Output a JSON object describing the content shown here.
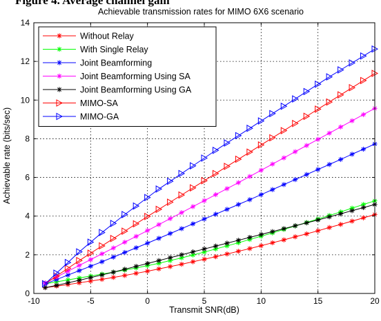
{
  "figure_heading": "Figure 4. Average channel gain",
  "chart_data": {
    "type": "line",
    "title": "Achievable transmission rates for MIMO 6X6 scenario",
    "xlabel": "Transmit SNR(dB)",
    "ylabel": "Achievable rate (bits/sec)",
    "xlim": [
      -10,
      20
    ],
    "ylim": [
      0,
      14
    ],
    "xticks": [
      -10,
      -5,
      0,
      5,
      10,
      15,
      20
    ],
    "yticks": [
      0,
      2,
      4,
      6,
      8,
      10,
      12,
      14
    ],
    "grid": true,
    "legend_position": "top-left",
    "x_start": -9,
    "x_step": 1,
    "series": [
      {
        "name": "Without Relay",
        "color": "#ff0000",
        "marker": "star",
        "values": [
          0.3,
          0.38,
          0.46,
          0.55,
          0.64,
          0.73,
          0.83,
          0.93,
          1.04,
          1.15,
          1.27,
          1.39,
          1.51,
          1.64,
          1.77,
          1.9,
          2.04,
          2.18,
          2.32,
          2.47,
          2.62,
          2.77,
          2.93,
          3.08,
          3.24,
          3.41,
          3.57,
          3.74,
          3.91,
          4.08
        ]
      },
      {
        "name": "With Single Relay",
        "color": "#00ff00",
        "marker": "star",
        "values": [
          0.5,
          0.6,
          0.7,
          0.8,
          0.9,
          1.0,
          1.1,
          1.21,
          1.32,
          1.44,
          1.56,
          1.7,
          1.84,
          1.99,
          2.14,
          2.3,
          2.46,
          2.62,
          2.79,
          2.96,
          3.13,
          3.31,
          3.49,
          3.67,
          3.85,
          4.03,
          4.22,
          4.41,
          4.6,
          4.79
        ]
      },
      {
        "name": "Joint Beamforming",
        "color": "#0000ff",
        "marker": "star",
        "values": [
          0.5,
          0.72,
          0.95,
          1.18,
          1.41,
          1.64,
          1.88,
          2.12,
          2.36,
          2.6,
          2.85,
          3.1,
          3.35,
          3.6,
          3.85,
          4.1,
          4.35,
          4.6,
          4.85,
          5.11,
          5.37,
          5.63,
          5.89,
          6.15,
          6.41,
          6.67,
          6.93,
          7.2,
          7.46,
          7.73
        ]
      },
      {
        "name": "Joint Beamforming Using SA",
        "color": "#ff00ff",
        "marker": "star",
        "values": [
          0.55,
          0.85,
          1.15,
          1.45,
          1.75,
          2.05,
          2.35,
          2.65,
          2.95,
          3.25,
          3.56,
          3.87,
          4.18,
          4.49,
          4.8,
          5.11,
          5.42,
          5.73,
          6.05,
          6.37,
          6.69,
          7.01,
          7.33,
          7.65,
          7.97,
          8.29,
          8.61,
          8.93,
          9.25,
          9.57
        ]
      },
      {
        "name": "Joint Beamforming Using GA",
        "color": "#000000",
        "marker": "star",
        "values": [
          0.3,
          0.42,
          0.55,
          0.68,
          0.82,
          0.96,
          1.1,
          1.25,
          1.4,
          1.55,
          1.7,
          1.85,
          2.0,
          2.15,
          2.3,
          2.45,
          2.6,
          2.75,
          2.9,
          3.05,
          3.2,
          3.35,
          3.5,
          3.65,
          3.8,
          3.96,
          4.12,
          4.28,
          4.44,
          4.6
        ]
      },
      {
        "name": "MIMO-SA",
        "color": "#ff0000",
        "marker": "triangle-right",
        "values": [
          0.5,
          0.9,
          1.3,
          1.7,
          2.08,
          2.46,
          2.84,
          3.22,
          3.6,
          3.98,
          4.35,
          4.72,
          5.09,
          5.46,
          5.83,
          6.2,
          6.57,
          6.94,
          7.31,
          7.68,
          8.05,
          8.42,
          8.79,
          9.16,
          9.53,
          9.9,
          10.27,
          10.64,
          11.01,
          11.38
        ]
      },
      {
        "name": "MIMO-GA",
        "color": "#0000ff",
        "marker": "triangle-right",
        "values": [
          0.5,
          1.05,
          1.6,
          2.15,
          2.65,
          3.15,
          3.62,
          4.08,
          4.52,
          4.96,
          5.4,
          5.8,
          6.2,
          6.6,
          7.0,
          7.4,
          7.78,
          8.16,
          8.54,
          8.92,
          9.3,
          9.68,
          10.06,
          10.44,
          10.82,
          11.2,
          11.56,
          11.92,
          12.28,
          12.64
        ]
      }
    ]
  }
}
